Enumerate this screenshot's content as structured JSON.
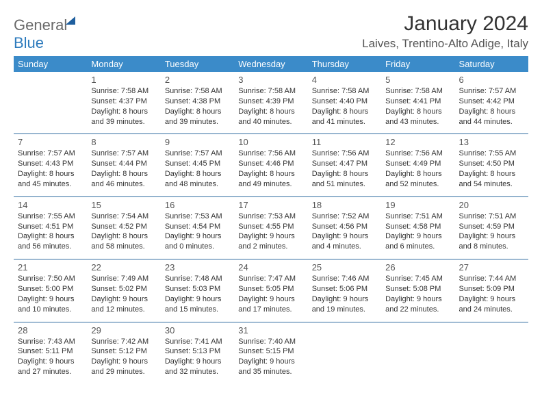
{
  "logo": {
    "part1": "General",
    "part2": "Blue"
  },
  "title": "January 2024",
  "location": "Laives, Trentino-Alto Adige, Italy",
  "colors": {
    "header_bg": "#3b8bc9",
    "header_text": "#ffffff",
    "row_border": "#2d6aa0",
    "text": "#333333",
    "muted": "#555555",
    "logo_gray": "#6a6a6a",
    "logo_blue": "#2d7bbd",
    "logo_icon": "#1f5f9e",
    "background": "#ffffff"
  },
  "daysOfWeek": [
    "Sunday",
    "Monday",
    "Tuesday",
    "Wednesday",
    "Thursday",
    "Friday",
    "Saturday"
  ],
  "weeks": [
    [
      null,
      {
        "n": "1",
        "sunrise": "7:58 AM",
        "sunset": "4:37 PM",
        "dl1": "Daylight: 8 hours",
        "dl2": "and 39 minutes."
      },
      {
        "n": "2",
        "sunrise": "7:58 AM",
        "sunset": "4:38 PM",
        "dl1": "Daylight: 8 hours",
        "dl2": "and 39 minutes."
      },
      {
        "n": "3",
        "sunrise": "7:58 AM",
        "sunset": "4:39 PM",
        "dl1": "Daylight: 8 hours",
        "dl2": "and 40 minutes."
      },
      {
        "n": "4",
        "sunrise": "7:58 AM",
        "sunset": "4:40 PM",
        "dl1": "Daylight: 8 hours",
        "dl2": "and 41 minutes."
      },
      {
        "n": "5",
        "sunrise": "7:58 AM",
        "sunset": "4:41 PM",
        "dl1": "Daylight: 8 hours",
        "dl2": "and 43 minutes."
      },
      {
        "n": "6",
        "sunrise": "7:57 AM",
        "sunset": "4:42 PM",
        "dl1": "Daylight: 8 hours",
        "dl2": "and 44 minutes."
      }
    ],
    [
      {
        "n": "7",
        "sunrise": "7:57 AM",
        "sunset": "4:43 PM",
        "dl1": "Daylight: 8 hours",
        "dl2": "and 45 minutes."
      },
      {
        "n": "8",
        "sunrise": "7:57 AM",
        "sunset": "4:44 PM",
        "dl1": "Daylight: 8 hours",
        "dl2": "and 46 minutes."
      },
      {
        "n": "9",
        "sunrise": "7:57 AM",
        "sunset": "4:45 PM",
        "dl1": "Daylight: 8 hours",
        "dl2": "and 48 minutes."
      },
      {
        "n": "10",
        "sunrise": "7:56 AM",
        "sunset": "4:46 PM",
        "dl1": "Daylight: 8 hours",
        "dl2": "and 49 minutes."
      },
      {
        "n": "11",
        "sunrise": "7:56 AM",
        "sunset": "4:47 PM",
        "dl1": "Daylight: 8 hours",
        "dl2": "and 51 minutes."
      },
      {
        "n": "12",
        "sunrise": "7:56 AM",
        "sunset": "4:49 PM",
        "dl1": "Daylight: 8 hours",
        "dl2": "and 52 minutes."
      },
      {
        "n": "13",
        "sunrise": "7:55 AM",
        "sunset": "4:50 PM",
        "dl1": "Daylight: 8 hours",
        "dl2": "and 54 minutes."
      }
    ],
    [
      {
        "n": "14",
        "sunrise": "7:55 AM",
        "sunset": "4:51 PM",
        "dl1": "Daylight: 8 hours",
        "dl2": "and 56 minutes."
      },
      {
        "n": "15",
        "sunrise": "7:54 AM",
        "sunset": "4:52 PM",
        "dl1": "Daylight: 8 hours",
        "dl2": "and 58 minutes."
      },
      {
        "n": "16",
        "sunrise": "7:53 AM",
        "sunset": "4:54 PM",
        "dl1": "Daylight: 9 hours",
        "dl2": "and 0 minutes."
      },
      {
        "n": "17",
        "sunrise": "7:53 AM",
        "sunset": "4:55 PM",
        "dl1": "Daylight: 9 hours",
        "dl2": "and 2 minutes."
      },
      {
        "n": "18",
        "sunrise": "7:52 AM",
        "sunset": "4:56 PM",
        "dl1": "Daylight: 9 hours",
        "dl2": "and 4 minutes."
      },
      {
        "n": "19",
        "sunrise": "7:51 AM",
        "sunset": "4:58 PM",
        "dl1": "Daylight: 9 hours",
        "dl2": "and 6 minutes."
      },
      {
        "n": "20",
        "sunrise": "7:51 AM",
        "sunset": "4:59 PM",
        "dl1": "Daylight: 9 hours",
        "dl2": "and 8 minutes."
      }
    ],
    [
      {
        "n": "21",
        "sunrise": "7:50 AM",
        "sunset": "5:00 PM",
        "dl1": "Daylight: 9 hours",
        "dl2": "and 10 minutes."
      },
      {
        "n": "22",
        "sunrise": "7:49 AM",
        "sunset": "5:02 PM",
        "dl1": "Daylight: 9 hours",
        "dl2": "and 12 minutes."
      },
      {
        "n": "23",
        "sunrise": "7:48 AM",
        "sunset": "5:03 PM",
        "dl1": "Daylight: 9 hours",
        "dl2": "and 15 minutes."
      },
      {
        "n": "24",
        "sunrise": "7:47 AM",
        "sunset": "5:05 PM",
        "dl1": "Daylight: 9 hours",
        "dl2": "and 17 minutes."
      },
      {
        "n": "25",
        "sunrise": "7:46 AM",
        "sunset": "5:06 PM",
        "dl1": "Daylight: 9 hours",
        "dl2": "and 19 minutes."
      },
      {
        "n": "26",
        "sunrise": "7:45 AM",
        "sunset": "5:08 PM",
        "dl1": "Daylight: 9 hours",
        "dl2": "and 22 minutes."
      },
      {
        "n": "27",
        "sunrise": "7:44 AM",
        "sunset": "5:09 PM",
        "dl1": "Daylight: 9 hours",
        "dl2": "and 24 minutes."
      }
    ],
    [
      {
        "n": "28",
        "sunrise": "7:43 AM",
        "sunset": "5:11 PM",
        "dl1": "Daylight: 9 hours",
        "dl2": "and 27 minutes."
      },
      {
        "n": "29",
        "sunrise": "7:42 AM",
        "sunset": "5:12 PM",
        "dl1": "Daylight: 9 hours",
        "dl2": "and 29 minutes."
      },
      {
        "n": "30",
        "sunrise": "7:41 AM",
        "sunset": "5:13 PM",
        "dl1": "Daylight: 9 hours",
        "dl2": "and 32 minutes."
      },
      {
        "n": "31",
        "sunrise": "7:40 AM",
        "sunset": "5:15 PM",
        "dl1": "Daylight: 9 hours",
        "dl2": "and 35 minutes."
      },
      null,
      null,
      null
    ]
  ],
  "labels": {
    "sunrise": "Sunrise: ",
    "sunset": "Sunset: "
  }
}
